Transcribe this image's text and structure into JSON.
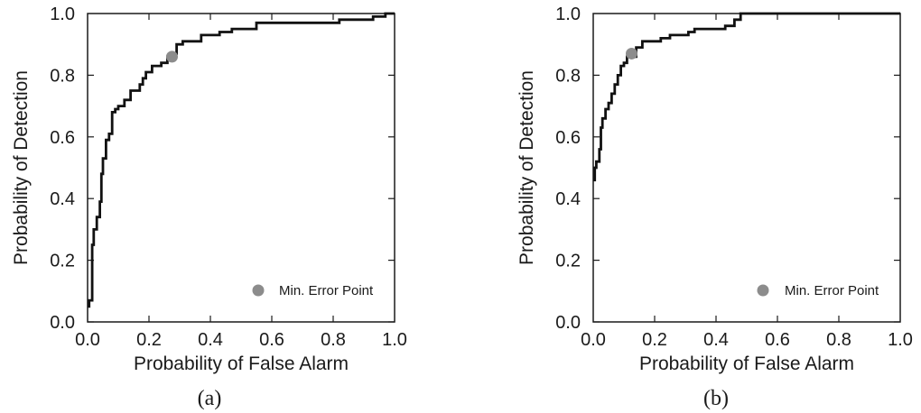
{
  "chart_data": [
    {
      "type": "line",
      "panel_label": "(a)",
      "xlabel": "Probability of False Alarm",
      "ylabel": "Probability of Detection",
      "xlim": [
        0,
        1
      ],
      "ylim": [
        0,
        1
      ],
      "xticks": [
        "0.0",
        "0.2",
        "0.4",
        "0.6",
        "0.8",
        "1.0"
      ],
      "yticks": [
        "0.0",
        "0.2",
        "0.4",
        "0.6",
        "0.8",
        "1.0"
      ],
      "grid": false,
      "legend": {
        "label": "Min. Error Point",
        "placement": "bottom-right"
      },
      "min_error_point": {
        "x": 0.275,
        "y": 0.86
      },
      "series": [
        {
          "points": [
            [
              0,
              0.05
            ],
            [
              0.005,
              0.05
            ],
            [
              0.005,
              0.07
            ],
            [
              0.015,
              0.07
            ],
            [
              0.015,
              0.25
            ],
            [
              0.02,
              0.25
            ],
            [
              0.02,
              0.3
            ],
            [
              0.03,
              0.3
            ],
            [
              0.03,
              0.34
            ],
            [
              0.04,
              0.34
            ],
            [
              0.04,
              0.39
            ],
            [
              0.045,
              0.39
            ],
            [
              0.045,
              0.48
            ],
            [
              0.05,
              0.48
            ],
            [
              0.05,
              0.53
            ],
            [
              0.06,
              0.53
            ],
            [
              0.06,
              0.59
            ],
            [
              0.07,
              0.59
            ],
            [
              0.07,
              0.61
            ],
            [
              0.08,
              0.61
            ],
            [
              0.08,
              0.68
            ],
            [
              0.09,
              0.68
            ],
            [
              0.09,
              0.69
            ],
            [
              0.1,
              0.69
            ],
            [
              0.1,
              0.7
            ],
            [
              0.12,
              0.7
            ],
            [
              0.12,
              0.72
            ],
            [
              0.14,
              0.72
            ],
            [
              0.14,
              0.75
            ],
            [
              0.17,
              0.75
            ],
            [
              0.17,
              0.77
            ],
            [
              0.18,
              0.77
            ],
            [
              0.18,
              0.79
            ],
            [
              0.19,
              0.79
            ],
            [
              0.19,
              0.81
            ],
            [
              0.21,
              0.81
            ],
            [
              0.21,
              0.83
            ],
            [
              0.24,
              0.83
            ],
            [
              0.24,
              0.84
            ],
            [
              0.26,
              0.84
            ],
            [
              0.26,
              0.86
            ],
            [
              0.28,
              0.86
            ],
            [
              0.28,
              0.87
            ],
            [
              0.29,
              0.87
            ],
            [
              0.29,
              0.9
            ],
            [
              0.31,
              0.9
            ],
            [
              0.31,
              0.91
            ],
            [
              0.37,
              0.91
            ],
            [
              0.37,
              0.93
            ],
            [
              0.43,
              0.93
            ],
            [
              0.43,
              0.94
            ],
            [
              0.47,
              0.94
            ],
            [
              0.47,
              0.95
            ],
            [
              0.55,
              0.95
            ],
            [
              0.55,
              0.97
            ],
            [
              0.82,
              0.97
            ],
            [
              0.82,
              0.98
            ],
            [
              0.93,
              0.98
            ],
            [
              0.93,
              0.99
            ],
            [
              0.97,
              0.99
            ],
            [
              0.97,
              1.0
            ],
            [
              1.0,
              1.0
            ]
          ]
        }
      ]
    },
    {
      "type": "line",
      "panel_label": "(b)",
      "xlabel": "Probability of False Alarm",
      "ylabel": "Probability of Detection",
      "xlim": [
        0,
        1
      ],
      "ylim": [
        0,
        1
      ],
      "xticks": [
        "0.0",
        "0.2",
        "0.4",
        "0.6",
        "0.8",
        "1.0"
      ],
      "yticks": [
        "0.0",
        "0.2",
        "0.4",
        "0.6",
        "0.8",
        "1.0"
      ],
      "grid": false,
      "legend": {
        "label": "Min. Error Point",
        "placement": "bottom-right"
      },
      "min_error_point": {
        "x": 0.125,
        "y": 0.87
      },
      "series": [
        {
          "points": [
            [
              0,
              0.46
            ],
            [
              0.005,
              0.46
            ],
            [
              0.005,
              0.5
            ],
            [
              0.01,
              0.5
            ],
            [
              0.01,
              0.52
            ],
            [
              0.02,
              0.52
            ],
            [
              0.02,
              0.56
            ],
            [
              0.025,
              0.56
            ],
            [
              0.025,
              0.63
            ],
            [
              0.03,
              0.63
            ],
            [
              0.03,
              0.66
            ],
            [
              0.04,
              0.66
            ],
            [
              0.04,
              0.69
            ],
            [
              0.05,
              0.69
            ],
            [
              0.05,
              0.71
            ],
            [
              0.06,
              0.71
            ],
            [
              0.06,
              0.74
            ],
            [
              0.07,
              0.74
            ],
            [
              0.07,
              0.77
            ],
            [
              0.08,
              0.77
            ],
            [
              0.08,
              0.8
            ],
            [
              0.09,
              0.8
            ],
            [
              0.09,
              0.83
            ],
            [
              0.1,
              0.83
            ],
            [
              0.1,
              0.84
            ],
            [
              0.11,
              0.84
            ],
            [
              0.11,
              0.86
            ],
            [
              0.14,
              0.86
            ],
            [
              0.14,
              0.89
            ],
            [
              0.16,
              0.89
            ],
            [
              0.16,
              0.91
            ],
            [
              0.22,
              0.91
            ],
            [
              0.22,
              0.92
            ],
            [
              0.25,
              0.92
            ],
            [
              0.25,
              0.93
            ],
            [
              0.31,
              0.93
            ],
            [
              0.31,
              0.94
            ],
            [
              0.33,
              0.94
            ],
            [
              0.33,
              0.95
            ],
            [
              0.43,
              0.95
            ],
            [
              0.43,
              0.96
            ],
            [
              0.46,
              0.96
            ],
            [
              0.46,
              0.98
            ],
            [
              0.48,
              0.98
            ],
            [
              0.48,
              1.0
            ],
            [
              1.0,
              1.0
            ]
          ]
        }
      ]
    }
  ]
}
